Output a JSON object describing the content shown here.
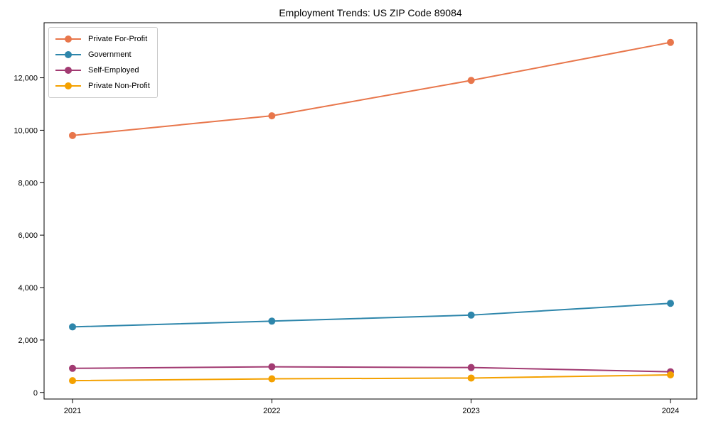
{
  "chart_data": {
    "type": "line",
    "title": "Employment Trends: US ZIP Code 89084",
    "categories": [
      "2021",
      "2022",
      "2023",
      "2024"
    ],
    "series": [
      {
        "name": "Private For-Profit",
        "color": "#E8764B",
        "values": [
          9800,
          10550,
          11900,
          13350
        ]
      },
      {
        "name": "Government",
        "color": "#2E86AB",
        "values": [
          2500,
          2720,
          2950,
          3400
        ]
      },
      {
        "name": "Self-Employed",
        "color": "#A23B72",
        "values": [
          920,
          980,
          950,
          790
        ]
      },
      {
        "name": "Private Non-Profit",
        "color": "#F4A100",
        "values": [
          450,
          520,
          550,
          670
        ]
      }
    ],
    "xlabel": "",
    "ylabel": "",
    "ylim": [
      -250,
      14100
    ],
    "y_ticks": [
      0,
      2000,
      4000,
      6000,
      8000,
      10000,
      12000
    ],
    "y_tick_labels": [
      "0",
      "2,000",
      "4,000",
      "6,000",
      "8,000",
      "10,000",
      "12,000"
    ],
    "legend_position": "upper-left",
    "grid": false,
    "marker": "circle",
    "axis_color": "#000000",
    "text_color": "#000000"
  }
}
